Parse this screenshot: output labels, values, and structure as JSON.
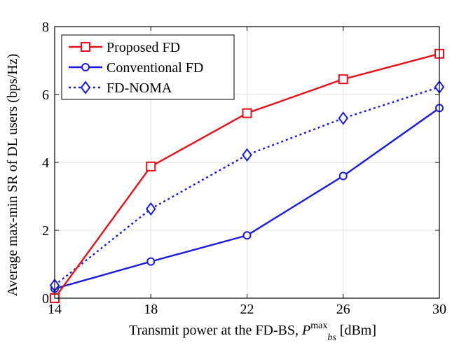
{
  "chart_data": {
    "type": "line",
    "xlabel": "Transmit power at the FD-BS, ",
    "xlabel_math": {
      "symbol": "P",
      "superscript": "max",
      "subscript": "bs"
    },
    "xlabel_unit": " [dBm]",
    "ylabel": "Average max-min SR of DL users (bps/Hz)",
    "x": [
      14,
      18,
      22,
      26,
      30
    ],
    "xticks": [
      14,
      18,
      22,
      26,
      30
    ],
    "yticks": [
      0,
      2,
      4,
      6,
      8
    ],
    "xlim": [
      14,
      30
    ],
    "ylim": [
      0,
      8
    ],
    "grid": true,
    "legend_position": "top-left",
    "series": [
      {
        "name": "Proposed FD",
        "values": [
          0.0,
          3.88,
          5.45,
          6.45,
          7.2
        ],
        "color": "#e8101a",
        "marker": "square",
        "dash": "solid"
      },
      {
        "name": "Conventional FD",
        "values": [
          0.28,
          1.08,
          1.85,
          3.6,
          5.6
        ],
        "color": "#1a1ae0",
        "marker": "circle",
        "dash": "solid"
      },
      {
        "name": "FD-NOMA",
        "values": [
          0.38,
          2.63,
          4.22,
          5.3,
          6.22
        ],
        "color": "#1a1ae0",
        "marker": "diamond",
        "dash": "dotted"
      }
    ]
  }
}
